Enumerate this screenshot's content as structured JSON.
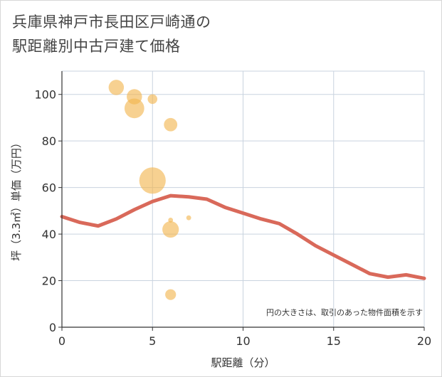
{
  "title": {
    "line1": "兵庫県神戸市長田区戸崎通の",
    "line2": "駅距離別中古戸建て価格"
  },
  "colors": {
    "line": "#d9695a",
    "bubble": "#f2b44d",
    "grid": "#c9d3df",
    "axis": "#333333"
  },
  "chart_data": {
    "type": "scatter",
    "xlabel": "駅距離（分）",
    "ylabel": "坪（3.3㎡）単価（万円）",
    "xlim": [
      0,
      20
    ],
    "ylim": [
      0,
      110
    ],
    "x_ticks": [
      0,
      5,
      10,
      15,
      20
    ],
    "y_ticks": [
      0,
      20,
      40,
      60,
      80,
      100
    ],
    "grid": true,
    "note": "円の大きさは、取引のあった物件面積を示す",
    "bubbles": [
      {
        "x": 3,
        "y": 103,
        "size": 3
      },
      {
        "x": 4,
        "y": 99,
        "size": 3
      },
      {
        "x": 4,
        "y": 94,
        "size": 5
      },
      {
        "x": 5,
        "y": 98,
        "size": 1.2
      },
      {
        "x": 6,
        "y": 87,
        "size": 2.3
      },
      {
        "x": 5,
        "y": 63,
        "size": 9
      },
      {
        "x": 6,
        "y": 46,
        "size": 0.3
      },
      {
        "x": 7,
        "y": 47,
        "size": 0.3
      },
      {
        "x": 6,
        "y": 42,
        "size": 3.5
      },
      {
        "x": 6,
        "y": 14,
        "size": 1.5
      }
    ],
    "trend_line": {
      "x": [
        0,
        1,
        2,
        3,
        4,
        5,
        6,
        7,
        8,
        9,
        10,
        11,
        12,
        13,
        14,
        15,
        16,
        17,
        18,
        19,
        20
      ],
      "y": [
        47.5,
        45,
        43.5,
        46.5,
        50.5,
        54,
        56.5,
        56,
        55,
        51.5,
        49,
        46.5,
        44.5,
        40,
        35,
        31,
        27,
        23,
        21.5,
        22.5,
        21
      ]
    }
  }
}
